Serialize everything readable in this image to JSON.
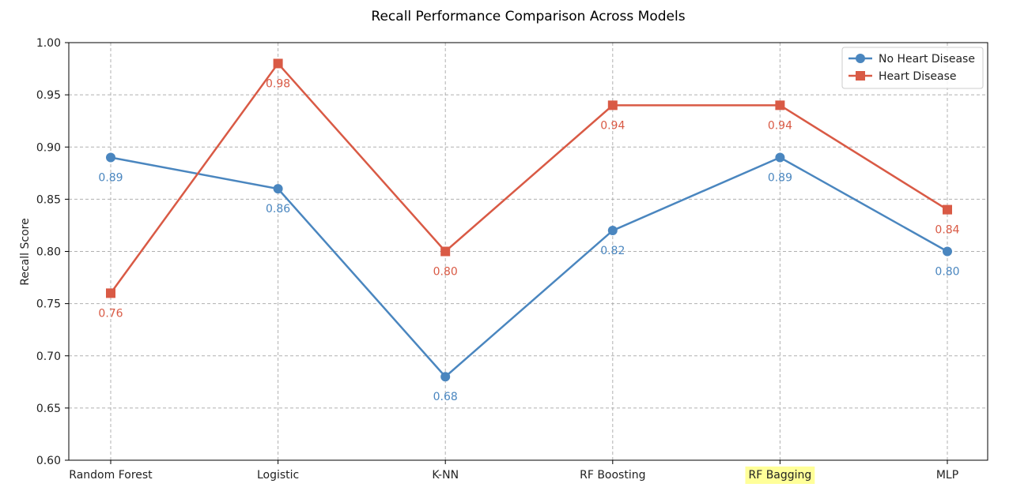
{
  "chart_data": {
    "type": "line",
    "title": "Recall Performance Comparison Across Models",
    "xlabel": "",
    "ylabel": "Recall Score",
    "categories": [
      "Random Forest",
      "Logistic",
      "K-NN",
      "RF Boosting",
      "RF Bagging",
      "MLP"
    ],
    "highlighted_category": "RF Bagging",
    "ylim": [
      0.6,
      1.0
    ],
    "yticks": [
      "0.60",
      "0.65",
      "0.70",
      "0.75",
      "0.80",
      "0.85",
      "0.90",
      "0.95",
      "1.00"
    ],
    "grid": true,
    "legend_position": "top-right",
    "series": [
      {
        "name": "No Heart Disease",
        "color": "#4a86bf",
        "marker": "circle",
        "values": [
          0.89,
          0.86,
          0.68,
          0.82,
          0.89,
          0.8
        ],
        "labels": [
          "0.89",
          "0.86",
          "0.68",
          "0.82",
          "0.89",
          "0.80"
        ]
      },
      {
        "name": "Heart Disease",
        "color": "#d95a45",
        "marker": "square",
        "values": [
          0.76,
          0.98,
          0.8,
          0.94,
          0.94,
          0.84
        ],
        "labels": [
          "0.76",
          "0.98",
          "0.80",
          "0.94",
          "0.94",
          "0.84"
        ]
      }
    ]
  },
  "colors": {
    "highlight": "#ffff99",
    "grid": "#b0b0b0",
    "axis": "#000000"
  }
}
